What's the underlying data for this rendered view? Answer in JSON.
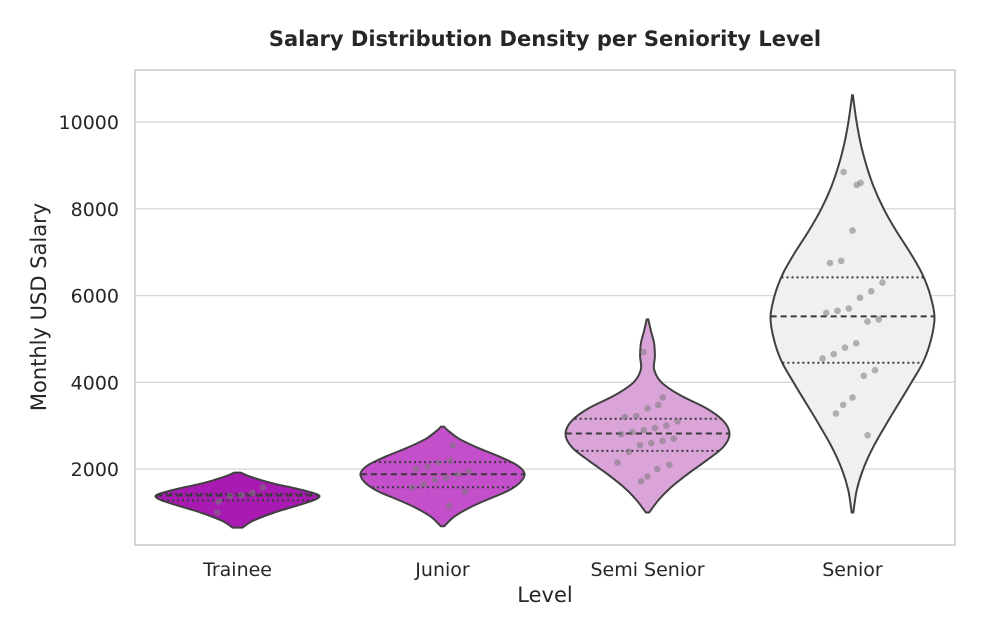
{
  "chart_data": {
    "type": "violin",
    "title": "Salary Distribution Density per Seniority Level",
    "xlabel": "Level",
    "ylabel": "Monthly USD Salary",
    "ylim": [
      250,
      11200
    ],
    "yticks": [
      2000,
      4000,
      6000,
      8000,
      10000
    ],
    "yticklabels": [
      "2000",
      "4000",
      "6000",
      "8000",
      "10000"
    ],
    "categories": [
      "Trainee",
      "Junior",
      "Semi Senior",
      "Senior"
    ],
    "colors": [
      "#a91ab3",
      "#c44fcb",
      "#dba4d9",
      "#f0f0f0"
    ],
    "series": [
      {
        "name": "Trainee",
        "min": 650,
        "max": 1920,
        "q1": 1280,
        "median": 1390,
        "q3": 1430,
        "density": [
          [
            650,
            0.06
          ],
          [
            800,
            0.18
          ],
          [
            1000,
            0.45
          ],
          [
            1200,
            0.8
          ],
          [
            1300,
            0.95
          ],
          [
            1380,
            1.0
          ],
          [
            1450,
            0.92
          ],
          [
            1550,
            0.72
          ],
          [
            1650,
            0.48
          ],
          [
            1750,
            0.28
          ],
          [
            1850,
            0.12
          ],
          [
            1920,
            0.04
          ]
        ],
        "points": [
          1000,
          1250,
          1380,
          1400,
          1450,
          1580
        ]
      },
      {
        "name": "Junior",
        "min": 680,
        "max": 2980,
        "q1": 1580,
        "median": 1880,
        "q3": 2160,
        "density": [
          [
            680,
            0.02
          ],
          [
            900,
            0.14
          ],
          [
            1100,
            0.32
          ],
          [
            1300,
            0.55
          ],
          [
            1500,
            0.8
          ],
          [
            1700,
            0.95
          ],
          [
            1900,
            1.0
          ],
          [
            2100,
            0.9
          ],
          [
            2300,
            0.68
          ],
          [
            2500,
            0.42
          ],
          [
            2700,
            0.2
          ],
          [
            2900,
            0.06
          ],
          [
            2980,
            0.02
          ]
        ],
        "points": [
          1150,
          1480,
          1580,
          1650,
          1750,
          1800,
          1880,
          1950,
          2000,
          2050,
          2150,
          2200,
          2550
        ]
      },
      {
        "name": "Semi Senior",
        "min": 1000,
        "max": 5450,
        "q1": 2420,
        "median": 2820,
        "q3": 3160,
        "density": [
          [
            1000,
            0.02
          ],
          [
            1300,
            0.14
          ],
          [
            1600,
            0.3
          ],
          [
            1900,
            0.5
          ],
          [
            2200,
            0.72
          ],
          [
            2500,
            0.92
          ],
          [
            2800,
            1.0
          ],
          [
            3100,
            0.93
          ],
          [
            3400,
            0.72
          ],
          [
            3700,
            0.4
          ],
          [
            4000,
            0.17
          ],
          [
            4300,
            0.08
          ],
          [
            4600,
            0.09
          ],
          [
            4900,
            0.08
          ],
          [
            5200,
            0.04
          ],
          [
            5450,
            0.01
          ]
        ],
        "points": [
          1720,
          1830,
          2000,
          2100,
          2150,
          2400,
          2550,
          2600,
          2650,
          2700,
          2800,
          2850,
          2900,
          2950,
          3000,
          3100,
          3200,
          3220,
          3400,
          3480,
          3650,
          4700
        ]
      },
      {
        "name": "Senior",
        "min": 1000,
        "max": 10620,
        "q1": 4450,
        "median": 5520,
        "q3": 6420,
        "density": [
          [
            1000,
            0.01
          ],
          [
            1500,
            0.05
          ],
          [
            2000,
            0.13
          ],
          [
            2500,
            0.25
          ],
          [
            3000,
            0.4
          ],
          [
            3500,
            0.56
          ],
          [
            4000,
            0.72
          ],
          [
            4500,
            0.87
          ],
          [
            5000,
            0.96
          ],
          [
            5500,
            1.0
          ],
          [
            6000,
            0.95
          ],
          [
            6500,
            0.85
          ],
          [
            7000,
            0.7
          ],
          [
            7500,
            0.53
          ],
          [
            8000,
            0.38
          ],
          [
            8500,
            0.26
          ],
          [
            9000,
            0.17
          ],
          [
            9500,
            0.1
          ],
          [
            10000,
            0.05
          ],
          [
            10400,
            0.02
          ],
          [
            10620,
            0.005
          ]
        ],
        "points": [
          2780,
          3280,
          3480,
          3650,
          4150,
          4280,
          4550,
          4650,
          4800,
          4900,
          5400,
          5450,
          5600,
          5650,
          5700,
          5950,
          6100,
          6300,
          6750,
          6800,
          7500,
          8550,
          8600,
          8850
        ]
      }
    ]
  }
}
